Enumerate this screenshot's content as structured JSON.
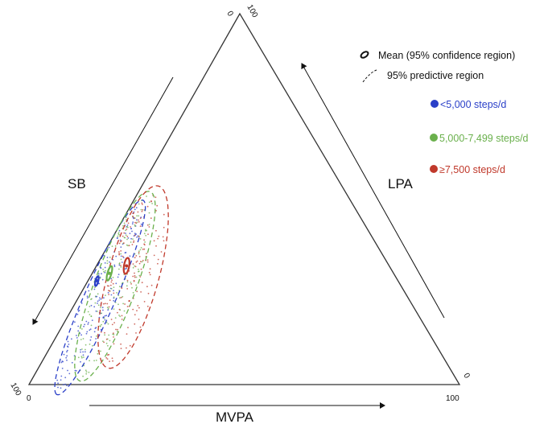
{
  "chart_data": {
    "type": "ternary-scatter",
    "axes": [
      {
        "name": "SB",
        "tick_labels": [
          "100",
          "0"
        ]
      },
      {
        "name": "LPA",
        "tick_labels": [
          "100",
          "0"
        ]
      },
      {
        "name": "MVPA",
        "tick_labels": [
          "0",
          "100"
        ]
      }
    ],
    "legend": {
      "mean_label": "Mean (95% confidence region)",
      "predictive_label": "95% predictive region",
      "placement": "top-right"
    },
    "groups": [
      {
        "name": "<5,000 steps/d",
        "color": "#2a3fc8",
        "mean": {
          "SB": 70,
          "LPA": 28,
          "MVPA": 2
        },
        "conf_region": {
          "sb_range": [
            69,
            71
          ],
          "mvpa_range": [
            1.6,
            2.6
          ]
        },
        "pred_region": {
          "sb_range": [
            48,
            95
          ],
          "mvpa_range": [
            0,
            10
          ]
        }
      },
      {
        "name": "5,000-7,499 steps/d",
        "color": "#6ab04c",
        "mean": {
          "SB": 66,
          "LPA": 30,
          "MVPA": 4
        },
        "conf_region": {
          "sb_range": [
            64.5,
            67.5
          ],
          "mvpa_range": [
            3.3,
            4.7
          ]
        },
        "pred_region": {
          "sb_range": [
            45,
            88
          ],
          "mvpa_range": [
            0,
            14
          ]
        }
      },
      {
        "name": "≥7,500 steps/d",
        "color": "#c0392b",
        "mean": {
          "SB": 61,
          "LPA": 32,
          "MVPA": 7
        },
        "conf_region": {
          "sb_range": [
            59.5,
            62.5
          ],
          "mvpa_range": [
            6,
            8
          ]
        },
        "pred_region": {
          "sb_range": [
            42,
            80
          ],
          "mvpa_range": [
            1,
            19
          ]
        }
      }
    ]
  }
}
